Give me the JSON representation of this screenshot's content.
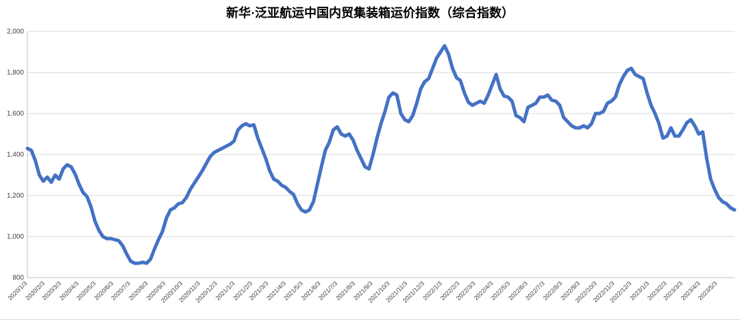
{
  "chart_data": {
    "type": "line",
    "title": "新华·泛亚航运中国内贸集装箱运价指数（综合指数）",
    "line_color": "#4472C4",
    "grid_color": "#d9d9d9",
    "axis_color": "#bfbfbf",
    "ylim": [
      800,
      2000
    ],
    "yticks": [
      800,
      1000,
      1200,
      1400,
      1600,
      1800,
      2000
    ],
    "ytick_labels": [
      "800",
      "1,000",
      "1,200",
      "1,400",
      "1,600",
      "1,800",
      "2,000"
    ],
    "xtick_labels": [
      "2020/1/3",
      "2020/2/3",
      "2020/3/3",
      "2020/4/3",
      "2020/5/3",
      "2020/6/3",
      "2020/7/3",
      "2020/8/3",
      "2020/9/3",
      "2020/10/3",
      "2020/11/3",
      "2020/12/3",
      "2021/1/3",
      "2021/2/3",
      "2021/3/3",
      "2021/4/3",
      "2021/5/3",
      "2021/6/3",
      "2021/7/3",
      "2021/8/3",
      "2021/9/3",
      "2021/10/3",
      "2021/11/3",
      "2021/12/3",
      "2022/1/3",
      "2022/2/3",
      "2022/3/3",
      "2022/4/3",
      "2022/5/3",
      "2022/6/3",
      "2022/7/3",
      "2022/8/3",
      "2022/9/3",
      "2022/10/3",
      "2022/11/3",
      "2022/12/3",
      "2023/1/3",
      "2023/2/3",
      "2023/3/3",
      "2023/4/3",
      "2023/5/3"
    ],
    "x": [
      "2020/1/3",
      "2020/1/10",
      "2020/1/17",
      "2020/1/24",
      "2020/1/31",
      "2020/2/7",
      "2020/2/14",
      "2020/2/21",
      "2020/2/28",
      "2020/3/6",
      "2020/3/13",
      "2020/3/20",
      "2020/3/27",
      "2020/4/3",
      "2020/4/10",
      "2020/4/17",
      "2020/4/24",
      "2020/5/1",
      "2020/5/8",
      "2020/5/15",
      "2020/5/22",
      "2020/5/29",
      "2020/6/5",
      "2020/6/12",
      "2020/6/19",
      "2020/6/26",
      "2020/7/3",
      "2020/7/10",
      "2020/7/17",
      "2020/7/24",
      "2020/7/31",
      "2020/8/7",
      "2020/8/14",
      "2020/8/21",
      "2020/8/28",
      "2020/9/4",
      "2020/9/11",
      "2020/9/18",
      "2020/9/25",
      "2020/10/2",
      "2020/10/9",
      "2020/10/16",
      "2020/10/23",
      "2020/10/30",
      "2020/11/6",
      "2020/11/13",
      "2020/11/20",
      "2020/11/27",
      "2020/12/4",
      "2020/12/11",
      "2020/12/18",
      "2020/12/25",
      "2021/1/1",
      "2021/1/8",
      "2021/1/15",
      "2021/1/22",
      "2021/1/29",
      "2021/2/5",
      "2021/2/12",
      "2021/2/19",
      "2021/2/26",
      "2021/3/5",
      "2021/3/12",
      "2021/3/19",
      "2021/3/26",
      "2021/4/2",
      "2021/4/9",
      "2021/4/16",
      "2021/4/23",
      "2021/4/30",
      "2021/5/7",
      "2021/5/14",
      "2021/5/21",
      "2021/5/28",
      "2021/6/4",
      "2021/6/11",
      "2021/6/18",
      "2021/6/25",
      "2021/7/2",
      "2021/7/9",
      "2021/7/16",
      "2021/7/23",
      "2021/7/30",
      "2021/8/6",
      "2021/8/13",
      "2021/8/20",
      "2021/8/27",
      "2021/9/3",
      "2021/9/10",
      "2021/9/17",
      "2021/9/24",
      "2021/10/1",
      "2021/10/8",
      "2021/10/15",
      "2021/10/22",
      "2021/10/29",
      "2021/11/5",
      "2021/11/12",
      "2021/11/19",
      "2021/11/26",
      "2021/12/3",
      "2021/12/10",
      "2021/12/17",
      "2021/12/24",
      "2021/12/31",
      "2022/1/7",
      "2022/1/14",
      "2022/1/21",
      "2022/1/28",
      "2022/2/4",
      "2022/2/11",
      "2022/2/18",
      "2022/2/25",
      "2022/3/4",
      "2022/3/11",
      "2022/3/18",
      "2022/3/25",
      "2022/4/1",
      "2022/4/8",
      "2022/4/15",
      "2022/4/22",
      "2022/4/29",
      "2022/5/6",
      "2022/5/13",
      "2022/5/20",
      "2022/5/27",
      "2022/6/3",
      "2022/6/10",
      "2022/6/17",
      "2022/6/24",
      "2022/7/1",
      "2022/7/8",
      "2022/7/15",
      "2022/7/22",
      "2022/7/29",
      "2022/8/5",
      "2022/8/12",
      "2022/8/19",
      "2022/8/26",
      "2022/9/2",
      "2022/9/9",
      "2022/9/16",
      "2022/9/23",
      "2022/9/30",
      "2022/10/7",
      "2022/10/14",
      "2022/10/21",
      "2022/10/28",
      "2022/11/4",
      "2022/11/11",
      "2022/11/18",
      "2022/11/25",
      "2022/12/2",
      "2022/12/9",
      "2022/12/16",
      "2022/12/23",
      "2022/12/30",
      "2023/1/6",
      "2023/1/13",
      "2023/1/20",
      "2023/1/27",
      "2023/2/3",
      "2023/2/10",
      "2023/2/17",
      "2023/2/24",
      "2023/3/3",
      "2023/3/10",
      "2023/3/17",
      "2023/3/24",
      "2023/3/31",
      "2023/4/7",
      "2023/4/14",
      "2023/4/21",
      "2023/4/28",
      "2023/5/5",
      "2023/5/12",
      "2023/5/19",
      "2023/5/26",
      "2023/6/2"
    ],
    "values": [
      1430,
      1420,
      1370,
      1300,
      1270,
      1290,
      1265,
      1300,
      1280,
      1330,
      1350,
      1340,
      1305,
      1255,
      1215,
      1195,
      1145,
      1075,
      1030,
      1000,
      990,
      990,
      985,
      980,
      955,
      915,
      880,
      870,
      870,
      875,
      870,
      890,
      940,
      985,
      1025,
      1090,
      1130,
      1140,
      1160,
      1165,
      1190,
      1230,
      1260,
      1290,
      1320,
      1355,
      1390,
      1410,
      1420,
      1430,
      1440,
      1450,
      1465,
      1520,
      1540,
      1550,
      1540,
      1545,
      1480,
      1430,
      1380,
      1320,
      1280,
      1270,
      1250,
      1240,
      1220,
      1205,
      1160,
      1130,
      1120,
      1130,
      1170,
      1255,
      1340,
      1420,
      1460,
      1520,
      1535,
      1500,
      1490,
      1500,
      1470,
      1420,
      1380,
      1340,
      1330,
      1400,
      1480,
      1550,
      1610,
      1680,
      1700,
      1690,
      1600,
      1570,
      1560,
      1590,
      1650,
      1720,
      1755,
      1770,
      1820,
      1870,
      1900,
      1930,
      1890,
      1820,
      1775,
      1760,
      1700,
      1655,
      1640,
      1650,
      1660,
      1650,
      1690,
      1740,
      1790,
      1720,
      1685,
      1680,
      1660,
      1590,
      1580,
      1560,
      1630,
      1640,
      1650,
      1680,
      1680,
      1690,
      1665,
      1660,
      1640,
      1580,
      1560,
      1540,
      1530,
      1530,
      1540,
      1530,
      1550,
      1600,
      1600,
      1610,
      1650,
      1660,
      1680,
      1740,
      1780,
      1810,
      1820,
      1790,
      1780,
      1770,
      1700,
      1640,
      1600,
      1550,
      1480,
      1490,
      1530,
      1490,
      1490,
      1520,
      1555,
      1570,
      1540,
      1500,
      1510,
      1380,
      1280,
      1230,
      1190,
      1170,
      1160,
      1140,
      1130
    ]
  }
}
